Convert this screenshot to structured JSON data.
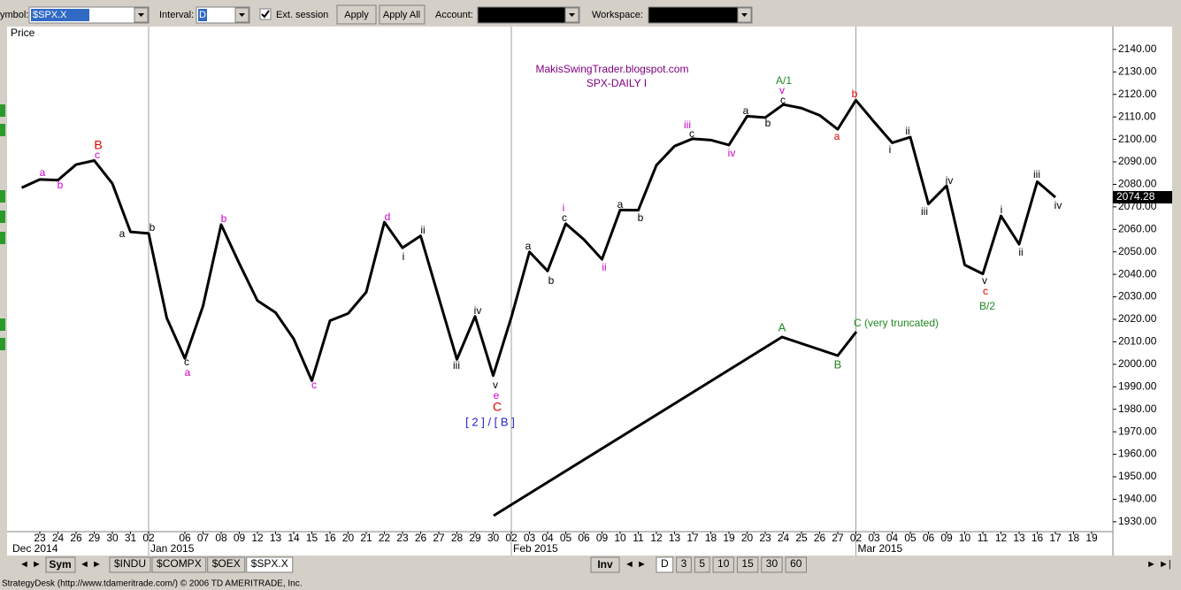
{
  "toolbar": {
    "symbol_label": "ymbol:",
    "symbol": "$SPX.X",
    "interval_label": "Interval:",
    "interval": "D",
    "ext_session": "Ext. session",
    "apply": "Apply",
    "apply_all": "Apply All",
    "account_label": "Account:",
    "workspace_label": "Workspace:"
  },
  "tabs": {
    "sym": "Sym",
    "symbols": [
      "$INDU",
      "$COMPX",
      "$OEX",
      "$SPX.X"
    ],
    "inv": "Inv",
    "intervals": [
      "D",
      "3",
      "5",
      "10",
      "15",
      "30",
      "60"
    ]
  },
  "status": "StrategyDesk (http://www.tdameritrade.com/) © 2006 TD AMERITRADE, Inc.",
  "chart_data": {
    "type": "line",
    "y_label": "Price",
    "color": "#000000",
    "month_labels": [
      "Dec 2014",
      "Jan 2015",
      "Feb 2015",
      "Mar 2015"
    ],
    "categories": [
      null,
      "23",
      "24",
      "26",
      "29",
      "30",
      "31",
      "02",
      null,
      "06",
      "07",
      "08",
      "09",
      "12",
      "13",
      "14",
      "15",
      "16",
      "20",
      "21",
      "22",
      "23",
      "26",
      "27",
      "28",
      "29",
      "30",
      "02",
      "03",
      "04",
      "05",
      "06",
      "09",
      "10",
      "11",
      "12",
      "13",
      "17",
      "18",
      "19",
      "20",
      "23",
      "24",
      "25",
      "26",
      "27",
      "02",
      "03",
      "04",
      "05",
      "06",
      "09",
      "10",
      "11",
      "12",
      "13",
      "16",
      "17",
      "18",
      "19"
    ],
    "values": [
      2078.5,
      2082.2,
      2081.9,
      2088.8,
      2090.6,
      2080.4,
      2058.9,
      2058.2,
      2020.6,
      2002.6,
      2025.9,
      2062.1,
      2044.8,
      2028.3,
      2023.0,
      2011.3,
      1992.7,
      2019.4,
      2022.6,
      2032.1,
      2063.2,
      2051.8,
      2057.1,
      2029.6,
      2002.2,
      2021.3,
      1995.0,
      2020.9,
      2050.0,
      2041.5,
      2062.5,
      2055.5,
      2046.7,
      2068.6,
      2068.5,
      2088.5,
      2097.0,
      2100.3,
      2099.7,
      2097.5,
      2110.3,
      2109.7,
      2115.5,
      2113.9,
      2110.7,
      2104.5,
      2117.4,
      2107.8,
      2098.5,
      2101.0,
      2071.3,
      2079.4,
      2044.2,
      2040.2,
      2066.0,
      2053.4,
      2081.2,
      2074.28,
      null,
      null
    ],
    "ylim": [
      1915,
      2148.6
    ],
    "yticks": [
      {
        "value": 1930,
        "label": "1930.00"
      },
      {
        "value": 1940,
        "label": "1940.00"
      },
      {
        "value": 1950,
        "label": "1950.00"
      },
      {
        "value": 1960,
        "label": "1960.00"
      },
      {
        "value": 1970,
        "label": "1970.00"
      },
      {
        "value": 1980,
        "label": "1980.00"
      },
      {
        "value": 1990,
        "label": "1990.00"
      },
      {
        "value": 2000,
        "label": "2000.00"
      },
      {
        "value": 2010,
        "label": "2010.00"
      },
      {
        "value": 2020,
        "label": "2020.00"
      },
      {
        "value": 2030,
        "label": "2030.00"
      },
      {
        "value": 2040,
        "label": "2040.00"
      },
      {
        "value": 2050,
        "label": "2050.00"
      },
      {
        "value": 2060,
        "label": "2060.00"
      },
      {
        "value": 2070,
        "label": "2070.00"
      },
      {
        "value": 2080,
        "label": "2080.00"
      },
      {
        "value": 2090,
        "label": "2090.00"
      },
      {
        "value": 2100,
        "label": "2100.00"
      },
      {
        "value": 2110,
        "label": "2110.00"
      },
      {
        "value": 2120,
        "label": "2120.00"
      },
      {
        "value": 2130,
        "label": "2130.00"
      },
      {
        "value": 2140,
        "label": "2140.00"
      }
    ],
    "annotations": [
      "MakisSwingTrader.blogspot.com",
      "SPX-DAILY  I",
      "A/1",
      "v",
      "c",
      "b",
      "a",
      "iii",
      "c",
      "iv",
      "a",
      "b",
      "ii",
      "i",
      "iv",
      "iii",
      "v",
      "c",
      "B/2",
      "i",
      "ii",
      "iii",
      "iv",
      "B",
      "c",
      "a",
      "b",
      "a",
      "b",
      "c",
      "a",
      "b",
      "c",
      "d",
      "ii",
      "i",
      "iii",
      "iv",
      "v",
      "e",
      "C",
      "[ 2 ] / [ B ]",
      "a",
      "b",
      "i",
      "c",
      "ii",
      "a",
      "b",
      "A",
      "B",
      "C (very truncated)"
    ]
  }
}
